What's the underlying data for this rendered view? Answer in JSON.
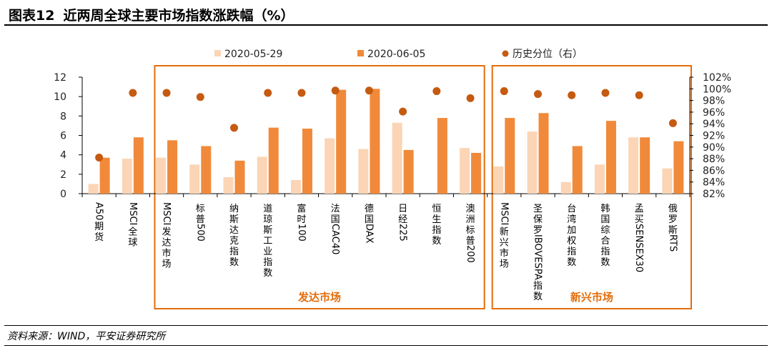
{
  "header": {
    "figure_number": "图表12",
    "title": "近两周全球主要市场指数涨跌幅（%）"
  },
  "footer": {
    "source": "资料来源：WIND，平安证券研究所"
  },
  "colors": {
    "series1": "#fbd5b5",
    "series2": "#f08a3a",
    "dot": "#c55a11",
    "group_box": "#e36c0a",
    "group_label": "#e36c0a"
  },
  "chart_data": {
    "type": "bar",
    "title": "近两周全球主要市场指数涨跌幅（%）",
    "categories": [
      "A50期货",
      "MSCI全球",
      "MSCI发达市场",
      "标普500",
      "纳斯达克指数",
      "道琼斯工业指数",
      "富时100",
      "法国CAC40",
      "德国DAX",
      "日经225",
      "恒生指数",
      "澳洲标普200",
      "MSCI新兴市场",
      "圣保罗IBOVESPA指数",
      "台湾加权指数",
      "韩国综合指数",
      "孟买SENSEX30",
      "俄罗斯RTS"
    ],
    "series": [
      {
        "name": "2020-05-29",
        "axis": "left",
        "kind": "bar",
        "values": [
          1.0,
          3.6,
          3.7,
          3.0,
          1.7,
          3.8,
          1.4,
          5.7,
          4.6,
          7.3,
          0.0,
          4.7,
          2.8,
          6.4,
          1.2,
          3.0,
          5.8,
          2.6
        ]
      },
      {
        "name": "2020-06-05",
        "axis": "left",
        "kind": "bar",
        "values": [
          3.7,
          5.8,
          5.5,
          4.9,
          3.4,
          6.8,
          6.7,
          10.7,
          10.8,
          4.5,
          7.8,
          4.2,
          7.8,
          8.3,
          4.9,
          7.5,
          5.8,
          5.4
        ]
      },
      {
        "name": "历史分位（右）",
        "axis": "right",
        "kind": "scatter",
        "values": [
          88.2,
          99.3,
          99.3,
          98.6,
          93.3,
          99.3,
          99.3,
          99.7,
          99.7,
          96.1,
          99.6,
          98.4,
          99.6,
          99.1,
          98.9,
          99.3,
          98.9,
          94.1
        ]
      }
    ],
    "ylim": [
      0,
      12
    ],
    "yticks": [
      "0",
      "2",
      "4",
      "6",
      "8",
      "10",
      "12"
    ],
    "y2lim": [
      82,
      102
    ],
    "y2ticks": [
      "82%",
      "84%",
      "86%",
      "88%",
      "90%",
      "92%",
      "94%",
      "96%",
      "98%",
      "100%",
      "102%"
    ],
    "legend_position": "top",
    "groups": [
      {
        "label": "发达市场",
        "from_category": "MSCI发达市场",
        "to_category": "澳洲标普200"
      },
      {
        "label": "新兴市场",
        "from_category": "MSCI新兴市场",
        "to_category": "俄罗斯RTS"
      }
    ]
  }
}
